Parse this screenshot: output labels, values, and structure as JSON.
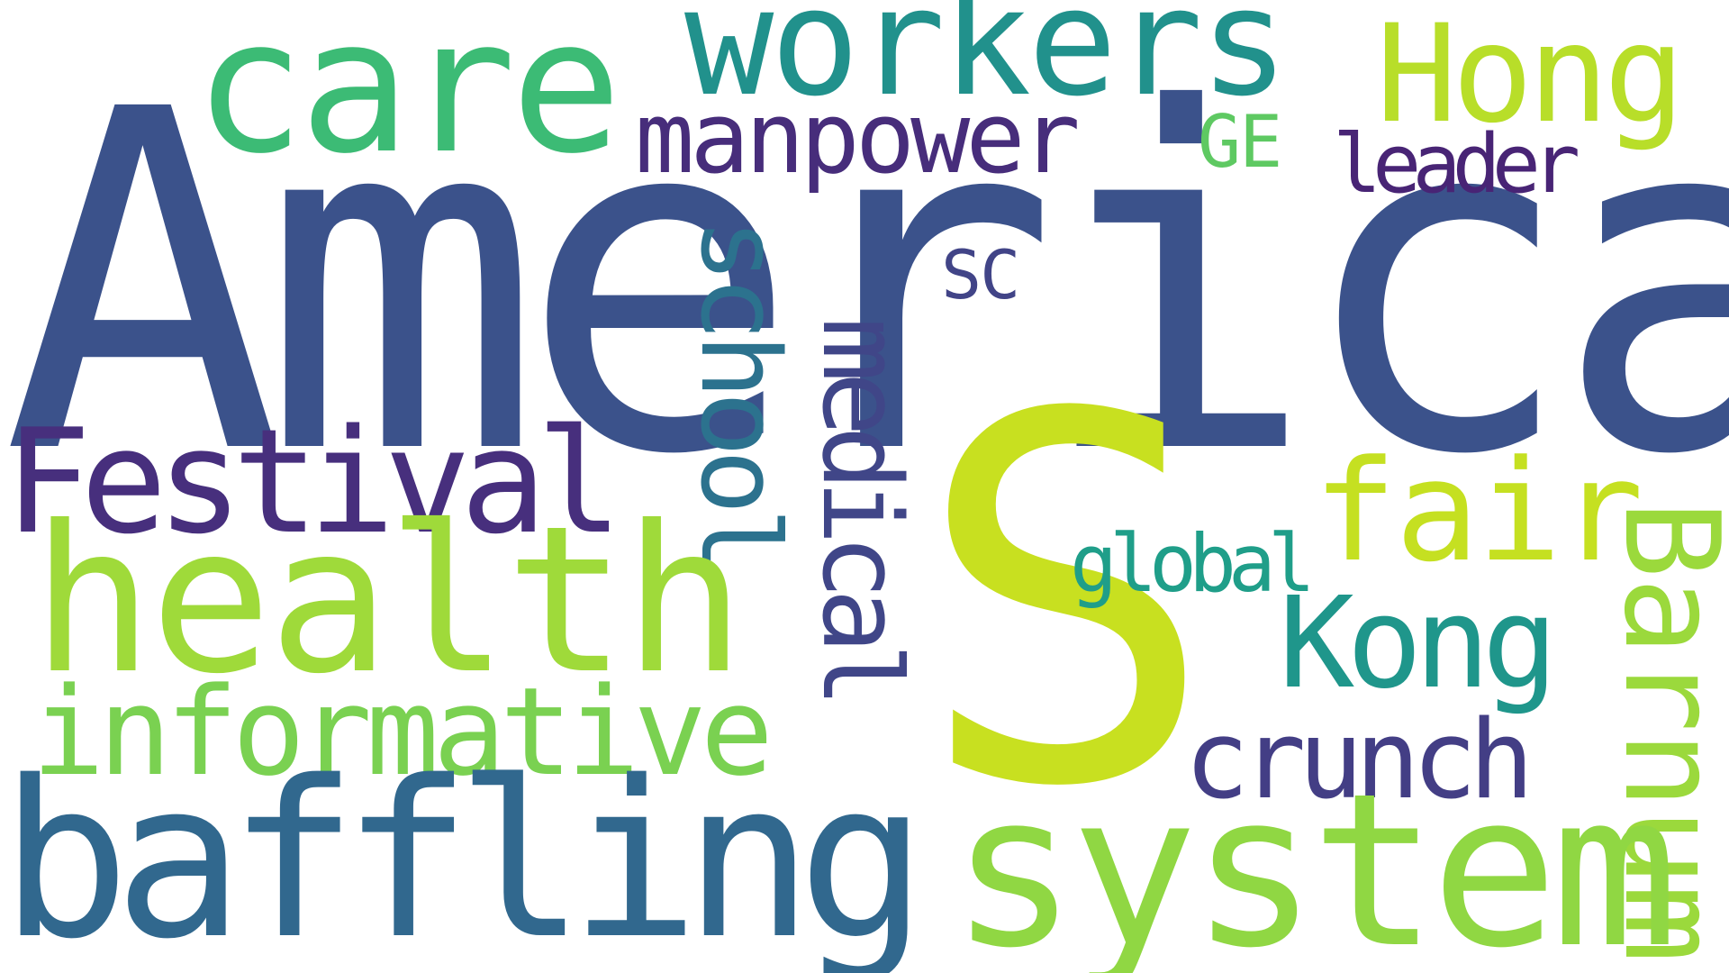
{
  "cloud": {
    "background": "#ffffff",
    "words": [
      {
        "text": "America",
        "color": "#3b528b",
        "orientation": "horizontal"
      },
      {
        "text": "S",
        "color": "#c8e020",
        "orientation": "horizontal"
      },
      {
        "text": "care",
        "color": "#3cbb75",
        "orientation": "horizontal"
      },
      {
        "text": "workers",
        "color": "#21918c",
        "orientation": "horizontal"
      },
      {
        "text": "Hong",
        "color": "#b8de29",
        "orientation": "horizontal"
      },
      {
        "text": "manpower",
        "color": "#472d7b",
        "orientation": "horizontal"
      },
      {
        "text": "GE",
        "color": "#5ec962",
        "orientation": "horizontal"
      },
      {
        "text": "leader",
        "color": "#482475",
        "orientation": "horizontal"
      },
      {
        "text": "SC",
        "color": "#414487",
        "orientation": "horizontal"
      },
      {
        "text": "school",
        "color": "#2c728e",
        "orientation": "vertical"
      },
      {
        "text": "medical",
        "color": "#404688",
        "orientation": "vertical"
      },
      {
        "text": "Festival",
        "color": "#472f7d",
        "orientation": "horizontal"
      },
      {
        "text": "fair",
        "color": "#c5e021",
        "orientation": "horizontal"
      },
      {
        "text": "health",
        "color": "#9fda3a",
        "orientation": "horizontal"
      },
      {
        "text": "global",
        "color": "#1f9e89",
        "orientation": "horizontal"
      },
      {
        "text": "Kong",
        "color": "#1f968b",
        "orientation": "horizontal"
      },
      {
        "text": "Barnum",
        "color": "#9bd93c",
        "orientation": "vertical"
      },
      {
        "text": "informative",
        "color": "#7ad151",
        "orientation": "horizontal"
      },
      {
        "text": "crunch",
        "color": "#433e85",
        "orientation": "horizontal"
      },
      {
        "text": "baffling",
        "color": "#31688e",
        "orientation": "horizontal"
      },
      {
        "text": "system",
        "color": "#90d743",
        "orientation": "horizontal"
      }
    ]
  }
}
